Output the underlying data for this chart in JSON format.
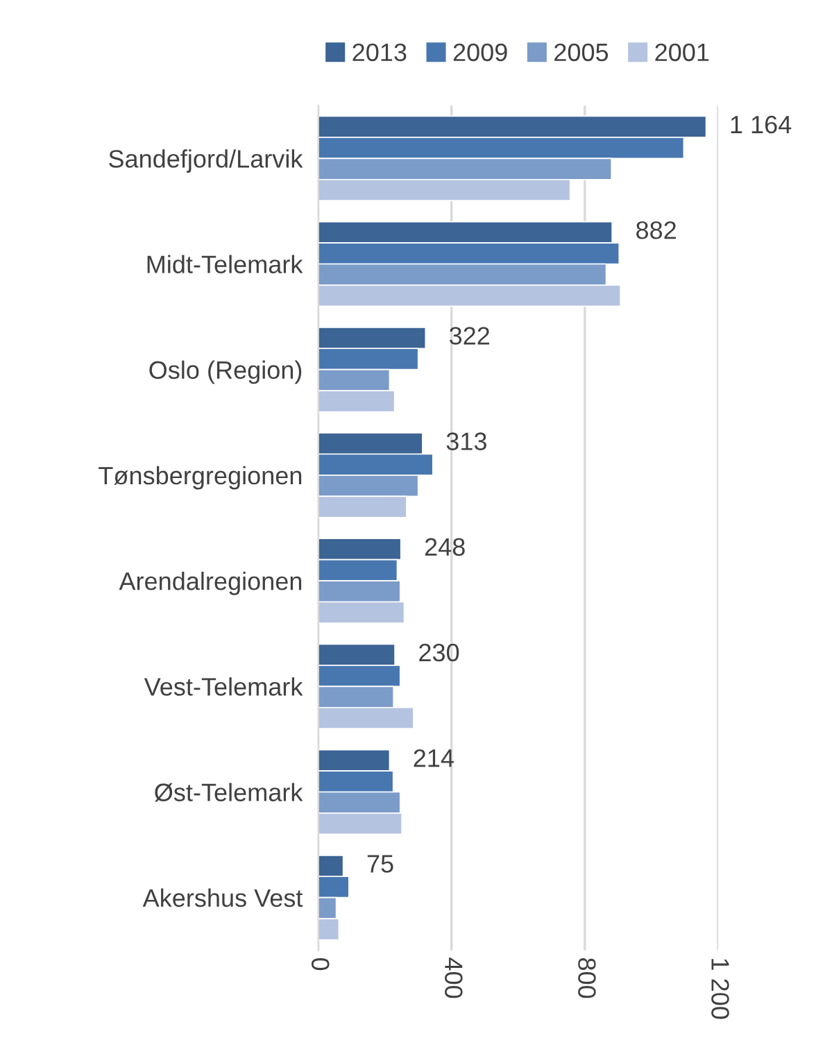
{
  "chart_data": {
    "type": "bar",
    "orientation": "horizontal",
    "categories": [
      "Sandefjord/Larvik",
      "Midt-Telemark",
      "Oslo (Region)",
      "Tønsbergregionen",
      "Arendalregionen",
      "Vest-Telemark",
      "Øst-Telemark",
      "Akershus Vest"
    ],
    "series": [
      {
        "name": "2013",
        "color": "#3c6494",
        "values": [
          1164,
          882,
          322,
          313,
          248,
          230,
          214,
          75
        ],
        "value_labels": [
          "1 164",
          "882",
          "322",
          "313",
          "248",
          "230",
          "214",
          "75"
        ]
      },
      {
        "name": "2009",
        "color": "#4877b0",
        "values": [
          1097,
          903,
          300,
          344,
          237,
          246,
          225,
          92
        ]
      },
      {
        "name": "2005",
        "color": "#7b9bc8",
        "values": [
          880,
          864,
          214,
          300,
          246,
          226,
          246,
          54
        ]
      },
      {
        "name": "2001",
        "color": "#b4c3e0",
        "values": [
          756,
          907,
          229,
          265,
          258,
          286,
          251,
          62
        ]
      }
    ],
    "xlim": [
      0,
      1200
    ],
    "xticks": [
      0,
      400,
      800,
      {
        "value": 1200,
        "label": "1 200"
      }
    ],
    "grid": "x",
    "legend": "top"
  }
}
